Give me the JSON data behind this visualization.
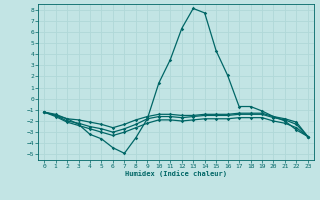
{
  "xlabel": "Humidex (Indice chaleur)",
  "xlim": [
    -0.5,
    23.5
  ],
  "ylim": [
    -5.5,
    8.5
  ],
  "xticks": [
    0,
    1,
    2,
    3,
    4,
    5,
    6,
    7,
    8,
    9,
    10,
    11,
    12,
    13,
    14,
    15,
    16,
    17,
    18,
    19,
    20,
    21,
    22,
    23
  ],
  "yticks": [
    -5,
    -4,
    -3,
    -2,
    -1,
    0,
    1,
    2,
    3,
    4,
    5,
    6,
    7,
    8
  ],
  "bg_color": "#c2e4e4",
  "grid_color": "#b0d8d8",
  "line_color": "#006666",
  "line1_x": [
    0,
    1,
    2,
    3,
    4,
    5,
    6,
    7,
    8,
    9,
    10,
    11,
    12,
    13,
    14,
    15,
    16,
    17,
    18,
    19,
    20,
    21,
    22,
    23
  ],
  "line1_y": [
    -1.2,
    -1.5,
    -1.8,
    -2.3,
    -3.2,
    -3.6,
    -4.4,
    -4.9,
    -3.5,
    -1.8,
    1.4,
    3.5,
    6.3,
    8.1,
    7.7,
    4.3,
    2.1,
    -0.7,
    -0.7,
    -1.1,
    -1.6,
    -2.0,
    -2.8,
    -3.4
  ],
  "line2_x": [
    0,
    1,
    2,
    3,
    4,
    5,
    6,
    7,
    8,
    9,
    10,
    11,
    12,
    13,
    14,
    15,
    16,
    17,
    18,
    19,
    20,
    21,
    22,
    23
  ],
  "line2_y": [
    -1.2,
    -1.4,
    -1.8,
    -1.9,
    -2.1,
    -2.3,
    -2.6,
    -2.3,
    -1.9,
    -1.6,
    -1.4,
    -1.4,
    -1.5,
    -1.5,
    -1.4,
    -1.4,
    -1.4,
    -1.3,
    -1.3,
    -1.3,
    -1.6,
    -1.8,
    -2.1,
    -3.4
  ],
  "line3_x": [
    0,
    1,
    2,
    3,
    4,
    5,
    6,
    7,
    8,
    9,
    10,
    11,
    12,
    13,
    14,
    15,
    16,
    17,
    18,
    19,
    20,
    21,
    22,
    23
  ],
  "line3_y": [
    -1.2,
    -1.5,
    -2.0,
    -2.2,
    -2.5,
    -2.7,
    -3.0,
    -2.7,
    -2.3,
    -1.8,
    -1.6,
    -1.6,
    -1.7,
    -1.6,
    -1.5,
    -1.5,
    -1.5,
    -1.4,
    -1.4,
    -1.4,
    -1.7,
    -1.9,
    -2.3,
    -3.4
  ],
  "line4_x": [
    0,
    1,
    2,
    3,
    4,
    5,
    6,
    7,
    8,
    9,
    10,
    11,
    12,
    13,
    14,
    15,
    16,
    17,
    18,
    19,
    20,
    21,
    22,
    23
  ],
  "line4_y": [
    -1.2,
    -1.6,
    -2.1,
    -2.4,
    -2.7,
    -3.0,
    -3.3,
    -3.0,
    -2.6,
    -2.2,
    -1.9,
    -1.9,
    -2.0,
    -1.9,
    -1.8,
    -1.8,
    -1.8,
    -1.7,
    -1.7,
    -1.7,
    -2.0,
    -2.2,
    -2.6,
    -3.4
  ]
}
